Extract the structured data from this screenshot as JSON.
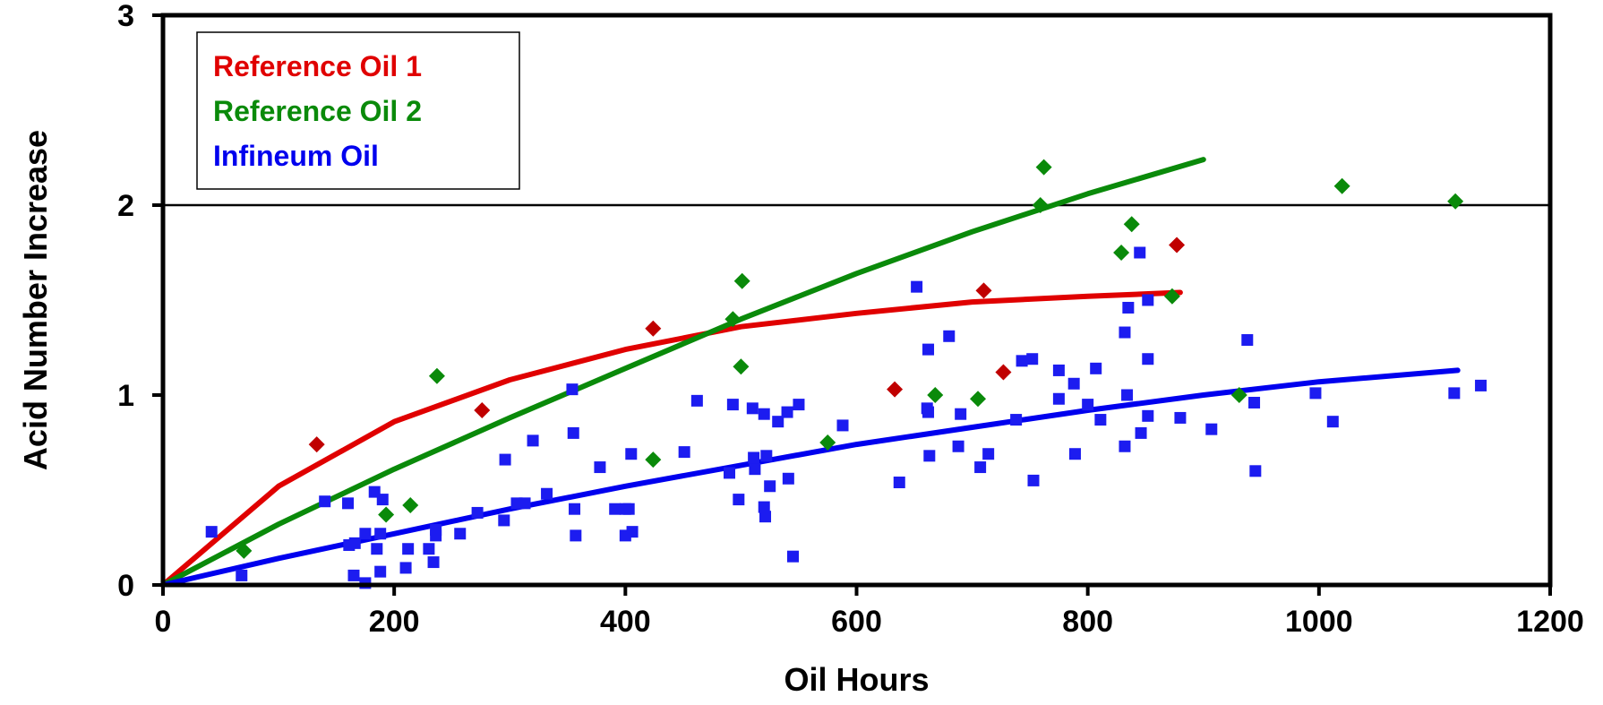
{
  "chart_data": {
    "type": "scatter",
    "xlabel": "Oil Hours",
    "ylabel": "Acid Number Increase",
    "xlim": [
      0,
      1200
    ],
    "ylim": [
      0,
      3
    ],
    "x_ticks": [
      "0",
      "200",
      "400",
      "600",
      "800",
      "1000",
      "1200"
    ],
    "y_ticks": [
      "0",
      "1",
      "2",
      "3"
    ],
    "gridlines_y": [
      2
    ],
    "legend_position": "top-left",
    "series": [
      {
        "name": "Reference Oil 1",
        "color": "#e00000",
        "marker_color": "#c00000",
        "marker": "diamond",
        "points": [
          [
            133,
            0.74
          ],
          [
            276,
            0.92
          ],
          [
            424,
            1.35
          ],
          [
            633,
            1.03
          ],
          [
            710,
            1.55
          ],
          [
            727,
            1.12
          ],
          [
            877,
            1.79
          ]
        ],
        "trend": [
          [
            0,
            0.0
          ],
          [
            100,
            0.52
          ],
          [
            200,
            0.86
          ],
          [
            300,
            1.08
          ],
          [
            400,
            1.24
          ],
          [
            500,
            1.36
          ],
          [
            600,
            1.43
          ],
          [
            700,
            1.49
          ],
          [
            800,
            1.52
          ],
          [
            880,
            1.54
          ]
        ]
      },
      {
        "name": "Reference Oil 2",
        "color": "#0a8a0a",
        "marker_color": "#0a8a0a",
        "marker": "diamond",
        "points": [
          [
            70,
            0.18
          ],
          [
            193,
            0.37
          ],
          [
            214,
            0.42
          ],
          [
            237,
            1.1
          ],
          [
            424,
            0.66
          ],
          [
            493,
            1.4
          ],
          [
            500,
            1.15
          ],
          [
            501,
            1.6
          ],
          [
            575,
            0.75
          ],
          [
            668,
            1.0
          ],
          [
            705,
            0.98
          ],
          [
            759,
            2.0
          ],
          [
            762,
            2.2
          ],
          [
            829,
            1.75
          ],
          [
            838,
            1.9
          ],
          [
            873,
            1.52
          ],
          [
            931,
            1.0
          ],
          [
            1020,
            2.1
          ],
          [
            1118,
            2.02
          ]
        ],
        "trend": [
          [
            0,
            0.0
          ],
          [
            100,
            0.32
          ],
          [
            200,
            0.61
          ],
          [
            300,
            0.88
          ],
          [
            400,
            1.14
          ],
          [
            500,
            1.4
          ],
          [
            600,
            1.64
          ],
          [
            700,
            1.86
          ],
          [
            800,
            2.06
          ],
          [
            900,
            2.24
          ]
        ]
      },
      {
        "name": "Infineum Oil",
        "color": "#0000ee",
        "marker_color": "#1c1cf0",
        "marker": "square",
        "points": [
          [
            42,
            0.28
          ],
          [
            68,
            0.05
          ],
          [
            140,
            0.44
          ],
          [
            160,
            0.43
          ],
          [
            161,
            0.21
          ],
          [
            165,
            0.05
          ],
          [
            166,
            0.22
          ],
          [
            175,
            0.01
          ],
          [
            175,
            0.27
          ],
          [
            183,
            0.49
          ],
          [
            185,
            0.19
          ],
          [
            188,
            0.07
          ],
          [
            188,
            0.27
          ],
          [
            190,
            0.45
          ],
          [
            210,
            0.09
          ],
          [
            212,
            0.19
          ],
          [
            230,
            0.19
          ],
          [
            234,
            0.12
          ],
          [
            236,
            0.26
          ],
          [
            236,
            0.29
          ],
          [
            257,
            0.27
          ],
          [
            272,
            0.38
          ],
          [
            295,
            0.34
          ],
          [
            296,
            0.66
          ],
          [
            306,
            0.43
          ],
          [
            313,
            0.43
          ],
          [
            320,
            0.76
          ],
          [
            332,
            0.48
          ],
          [
            354,
            1.03
          ],
          [
            355,
            0.8
          ],
          [
            356,
            0.4
          ],
          [
            357,
            0.26
          ],
          [
            378,
            0.62
          ],
          [
            391,
            0.4
          ],
          [
            400,
            0.4
          ],
          [
            400,
            0.26
          ],
          [
            403,
            0.4
          ],
          [
            405,
            0.69
          ],
          [
            406,
            0.28
          ],
          [
            451,
            0.7
          ],
          [
            462,
            0.97
          ],
          [
            490,
            0.59
          ],
          [
            493,
            0.95
          ],
          [
            498,
            0.45
          ],
          [
            510,
            0.93
          ],
          [
            511,
            0.67
          ],
          [
            512,
            0.61
          ],
          [
            520,
            0.9
          ],
          [
            520,
            0.41
          ],
          [
            521,
            0.36
          ],
          [
            522,
            0.68
          ],
          [
            525,
            0.52
          ],
          [
            532,
            0.86
          ],
          [
            540,
            0.91
          ],
          [
            541,
            0.56
          ],
          [
            545,
            0.15
          ],
          [
            550,
            0.95
          ],
          [
            588,
            0.84
          ],
          [
            637,
            0.54
          ],
          [
            652,
            1.57
          ],
          [
            661,
            0.93
          ],
          [
            662,
            1.24
          ],
          [
            662,
            0.91
          ],
          [
            663,
            0.68
          ],
          [
            680,
            1.31
          ],
          [
            688,
            0.73
          ],
          [
            690,
            0.9
          ],
          [
            707,
            0.62
          ],
          [
            714,
            0.69
          ],
          [
            738,
            0.87
          ],
          [
            743,
            1.18
          ],
          [
            752,
            1.19
          ],
          [
            753,
            0.55
          ],
          [
            775,
            1.13
          ],
          [
            775,
            0.98
          ],
          [
            788,
            1.06
          ],
          [
            789,
            0.69
          ],
          [
            800,
            0.95
          ],
          [
            807,
            1.14
          ],
          [
            811,
            0.87
          ],
          [
            832,
            0.73
          ],
          [
            832,
            1.33
          ],
          [
            834,
            1.0
          ],
          [
            835,
            1.46
          ],
          [
            845,
            1.75
          ],
          [
            846,
            0.8
          ],
          [
            852,
            1.5
          ],
          [
            852,
            1.19
          ],
          [
            852,
            0.89
          ],
          [
            880,
            0.88
          ],
          [
            907,
            0.82
          ],
          [
            938,
            1.29
          ],
          [
            944,
            0.96
          ],
          [
            945,
            0.6
          ],
          [
            997,
            1.01
          ],
          [
            1012,
            0.86
          ],
          [
            1117,
            1.01
          ],
          [
            1140,
            1.05
          ]
        ],
        "trend": [
          [
            0,
            0.0
          ],
          [
            100,
            0.14
          ],
          [
            200,
            0.27
          ],
          [
            300,
            0.4
          ],
          [
            400,
            0.52
          ],
          [
            500,
            0.63
          ],
          [
            600,
            0.74
          ],
          [
            700,
            0.83
          ],
          [
            800,
            0.92
          ],
          [
            900,
            1.0
          ],
          [
            1000,
            1.07
          ],
          [
            1120,
            1.13
          ]
        ]
      }
    ]
  }
}
